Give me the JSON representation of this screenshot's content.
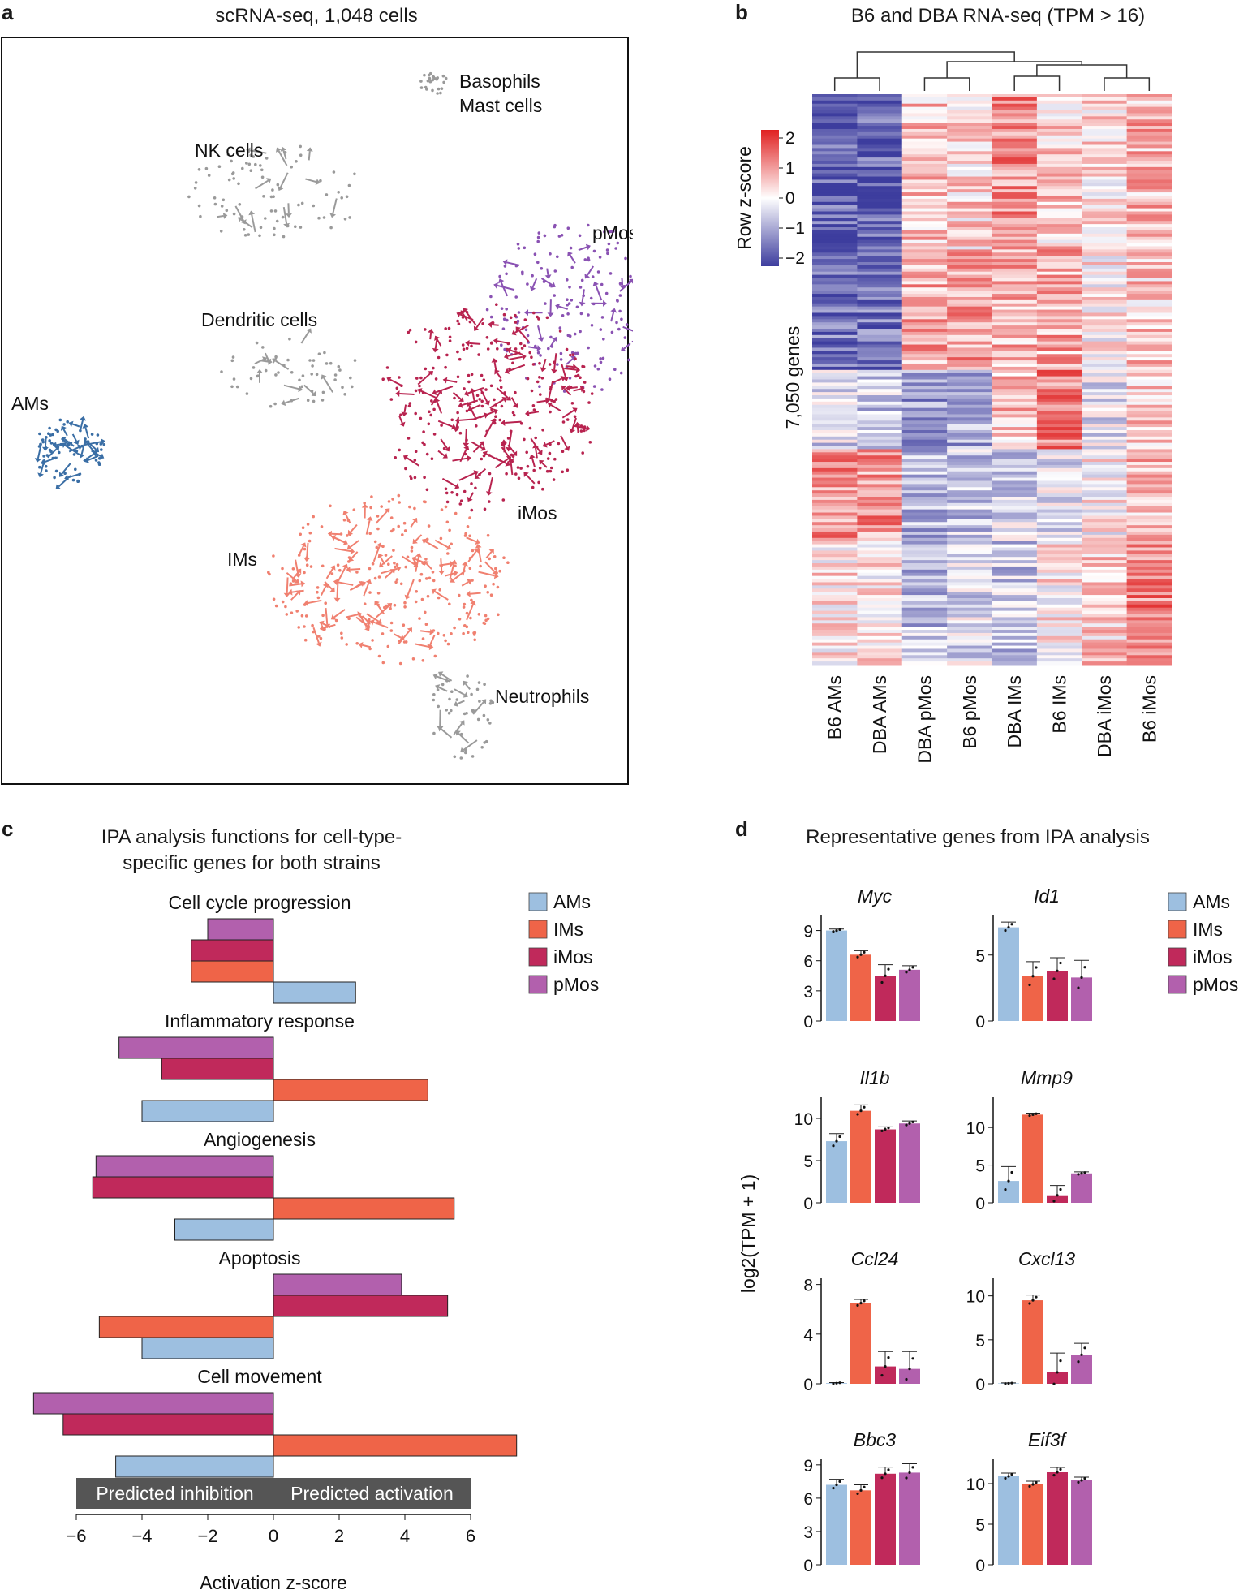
{
  "panels": {
    "a": {
      "letter": "a",
      "title": "scRNA-seq, 1,048 cells",
      "clusters": [
        {
          "name": "Basophils",
          "label_line2": "Mast cells",
          "color": "#9a9a9a"
        },
        {
          "name": "NK cells",
          "color": "#9a9a9a"
        },
        {
          "name": "pMos",
          "color": "#8a52b3"
        },
        {
          "name": "Dendritic cells",
          "color": "#9a9a9a"
        },
        {
          "name": "AMs",
          "color": "#3a6ea5"
        },
        {
          "name": "iMos",
          "color": "#b8234f"
        },
        {
          "name": "IMs",
          "color": "#f08070"
        },
        {
          "name": "Neutrophils",
          "color": "#9a9a9a"
        }
      ]
    },
    "b": {
      "letter": "b",
      "title": "B6 and DBA RNA-seq (TPM > 16)",
      "colorbar_label": "Row z-score",
      "colorbar_ticks": [
        "2",
        "1",
        "0",
        "−1",
        "−2"
      ],
      "row_label": "7,050 genes",
      "columns": [
        "B6 AMs",
        "DBA AMs",
        "DBA pMos",
        "B6 pMos",
        "DBA IMs",
        "B6 IMs",
        "DBA iMos",
        "B6 iMos"
      ],
      "color_low": "#3d3d9e",
      "color_mid": "#ffffff",
      "color_high": "#e02020"
    },
    "c": {
      "letter": "c",
      "title_line1": "IPA analysis functions for cell-type-",
      "title_line2": "specific genes for both strains",
      "inhibition_label": "Predicted inhibition",
      "activation_label": "Predicted activation"
    },
    "d": {
      "letter": "d",
      "title": "Representative genes from IPA analysis",
      "ylabel": "log2(TPM + 1)"
    }
  },
  "legend": [
    {
      "name": "AMs",
      "color": "#9dbfe0"
    },
    {
      "name": "IMs",
      "color": "#ef6448"
    },
    {
      "name": "iMos",
      "color": "#c0295b"
    },
    {
      "name": "pMos",
      "color": "#b260ad"
    }
  ],
  "chart_data": [
    {
      "type": "bar",
      "orientation": "horizontal",
      "title": "IPA analysis functions for cell-type-specific genes for both strains",
      "xlabel": "Activation z-score",
      "xlim": [
        -6,
        7.5
      ],
      "xticks": [
        -6,
        -4,
        -2,
        0,
        2,
        4,
        6
      ],
      "categories": [
        "Cell cycle progression",
        "Inflammatory response",
        "Angiogenesis",
        "Apoptosis",
        "Cell movement"
      ],
      "series": [
        {
          "name": "pMos",
          "values": [
            -2.0,
            -4.7,
            -5.4,
            3.9,
            -7.3
          ]
        },
        {
          "name": "iMos",
          "values": [
            -2.5,
            -3.4,
            -5.5,
            5.3,
            -6.4
          ]
        },
        {
          "name": "IMs",
          "values": [
            -2.5,
            4.7,
            5.5,
            -5.3,
            7.4
          ]
        },
        {
          "name": "AMs",
          "values": [
            2.5,
            -4.0,
            -3.0,
            -4.0,
            -4.8
          ]
        }
      ]
    },
    {
      "type": "bar",
      "title": "Representative genes from IPA analysis",
      "ylabel": "log2(TPM + 1)",
      "categories": [
        "AMs",
        "IMs",
        "iMos",
        "pMos"
      ],
      "genes": [
        {
          "name": "Myc",
          "ylim": [
            0,
            10.5
          ],
          "yticks": [
            0,
            3,
            6,
            9
          ],
          "values": [
            9.0,
            6.6,
            4.5,
            5.1
          ],
          "errors": [
            0.15,
            0.4,
            1.1,
            0.4
          ]
        },
        {
          "name": "Id1",
          "ylim": [
            0,
            8
          ],
          "yticks": [
            0,
            5
          ],
          "values": [
            7.1,
            3.4,
            3.8,
            3.3
          ],
          "errors": [
            0.4,
            1.1,
            1.0,
            1.3
          ]
        },
        {
          "name": "Il1b",
          "ylim": [
            0,
            12.5
          ],
          "yticks": [
            0,
            5,
            10
          ],
          "values": [
            7.3,
            10.9,
            8.7,
            9.4
          ],
          "errors": [
            0.9,
            0.7,
            0.3,
            0.3
          ]
        },
        {
          "name": "Mmp9",
          "ylim": [
            0,
            14
          ],
          "yticks": [
            0,
            5,
            10
          ],
          "values": [
            2.9,
            11.7,
            1.0,
            3.9
          ],
          "errors": [
            1.9,
            0.2,
            1.3,
            0.2
          ]
        },
        {
          "name": "Ccl24",
          "ylim": [
            0,
            8.5
          ],
          "yticks": [
            0,
            4,
            8
          ],
          "values": [
            0.05,
            6.5,
            1.4,
            1.2
          ],
          "errors": [
            0.05,
            0.3,
            1.2,
            1.4
          ]
        },
        {
          "name": "Cxcl13",
          "ylim": [
            0,
            12
          ],
          "yticks": [
            0,
            5,
            10
          ],
          "values": [
            0.05,
            9.5,
            1.3,
            3.3
          ],
          "errors": [
            0.05,
            0.6,
            2.2,
            1.3
          ]
        },
        {
          "name": "Bbc3",
          "ylim": [
            0,
            9.5
          ],
          "yticks": [
            0,
            3,
            6,
            9
          ],
          "values": [
            7.2,
            6.7,
            8.2,
            8.3
          ],
          "errors": [
            0.5,
            0.5,
            0.6,
            0.8
          ]
        },
        {
          "name": "Eif3f",
          "ylim": [
            0,
            13
          ],
          "yticks": [
            0,
            5,
            10
          ],
          "values": [
            10.9,
            9.9,
            11.4,
            10.4
          ],
          "errors": [
            0.4,
            0.4,
            0.6,
            0.4
          ]
        }
      ]
    }
  ]
}
